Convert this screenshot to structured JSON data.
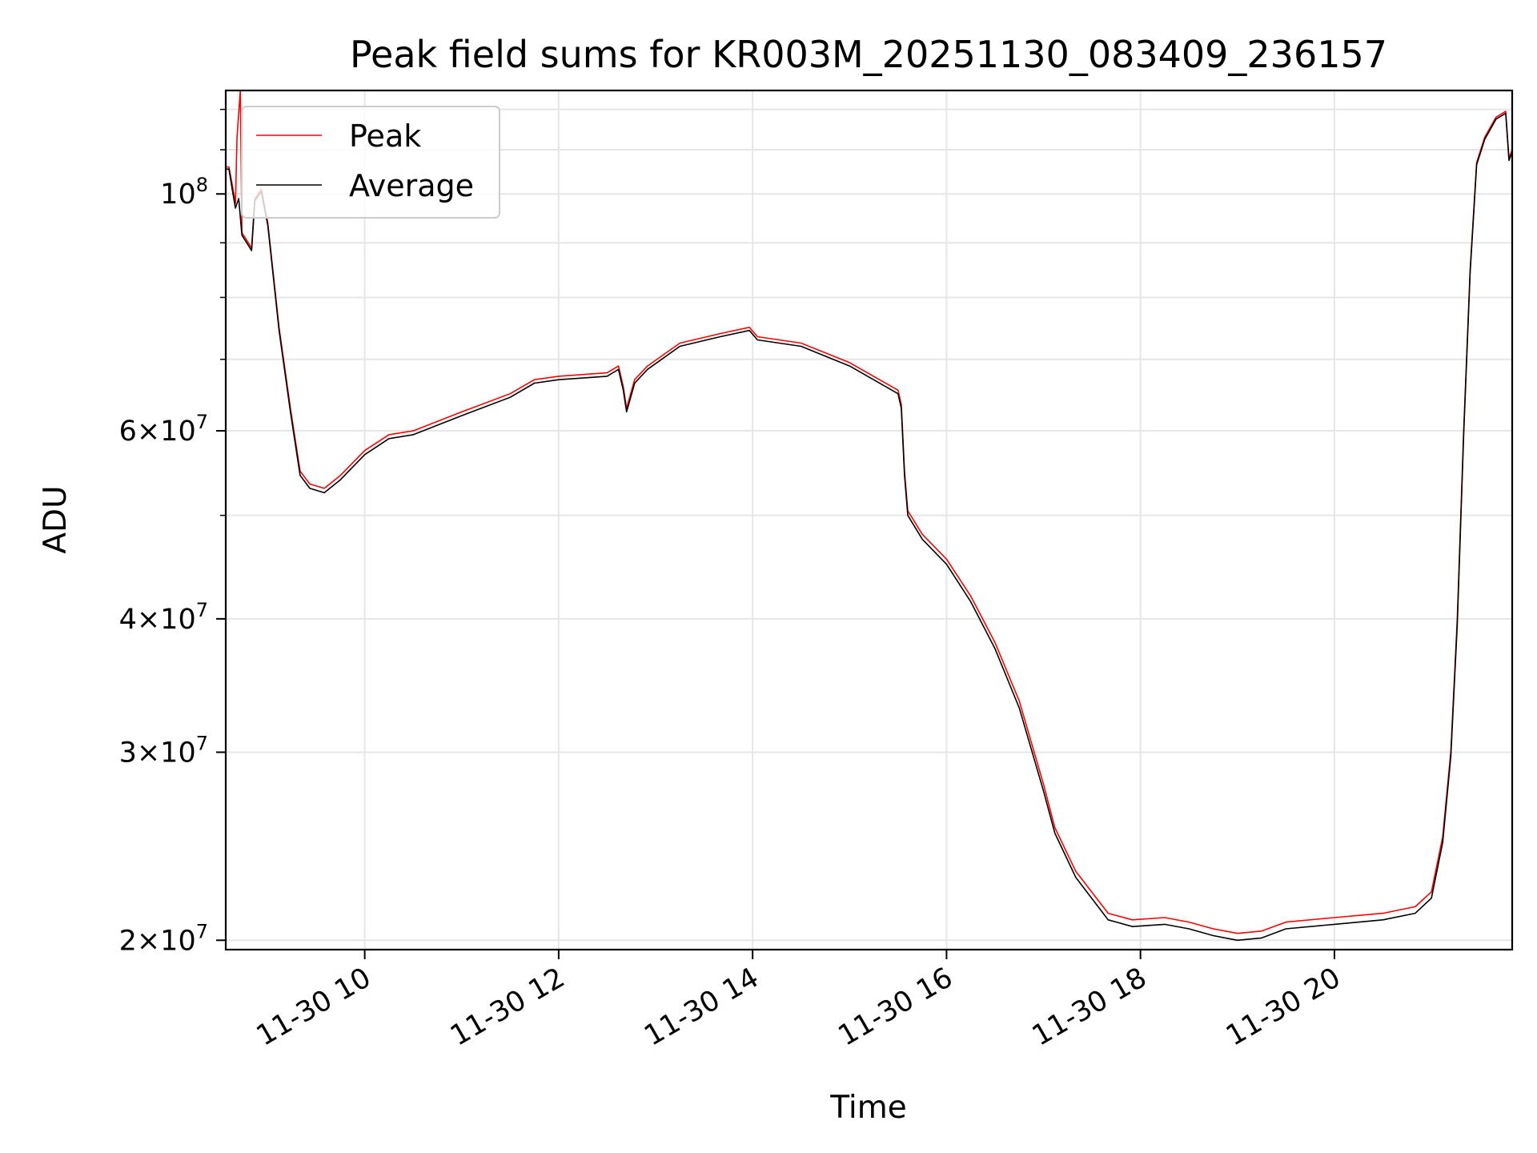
{
  "chart_data": {
    "type": "line",
    "title": "Peak field sums for KR003M_20251130_083409_236157",
    "xlabel": "Time",
    "ylabel": "ADU",
    "yscale": "log",
    "grid": true,
    "legend_position": "top-left",
    "xlim": [
      "2025-11-30 08:34",
      "2025-11-30 21:50"
    ],
    "ylim": [
      19600000,
      125000000
    ],
    "x_ticks": [
      {
        "time": "2025-11-30 10:00",
        "label": "11-30 10"
      },
      {
        "time": "2025-11-30 12:00",
        "label": "11-30 12"
      },
      {
        "time": "2025-11-30 14:00",
        "label": "11-30 14"
      },
      {
        "time": "2025-11-30 16:00",
        "label": "11-30 16"
      },
      {
        "time": "2025-11-30 18:00",
        "label": "11-30 18"
      },
      {
        "time": "2025-11-30 20:00",
        "label": "11-30 20"
      }
    ],
    "y_major_ticks": [
      {
        "value": 20000000,
        "mant": "2",
        "exp": "7"
      },
      {
        "value": 30000000,
        "mant": "3",
        "exp": "7"
      },
      {
        "value": 40000000,
        "mant": "4",
        "exp": "7"
      },
      {
        "value": 60000000,
        "mant": "6",
        "exp": "7"
      },
      {
        "value": 100000000,
        "mant": "",
        "exp": "8"
      }
    ],
    "y_minor_ticks": [
      50000000,
      70000000,
      80000000,
      90000000,
      110000000,
      120000000
    ],
    "series": [
      {
        "name": "Peak",
        "color": "#ff0000",
        "points": [
          [
            "2025-11-30 08:34",
            106000000
          ],
          [
            "2025-11-30 08:36",
            106000000
          ],
          [
            "2025-11-30 08:38",
            102000000
          ],
          [
            "2025-11-30 08:40",
            98000000
          ],
          [
            "2025-11-30 08:41",
            113000000
          ],
          [
            "2025-11-30 08:43",
            125000000
          ],
          [
            "2025-11-30 08:44",
            92000000
          ],
          [
            "2025-11-30 08:50",
            89000000
          ],
          [
            "2025-11-30 08:52",
            99000000
          ],
          [
            "2025-11-30 08:56",
            101000000
          ],
          [
            "2025-11-30 09:00",
            94000000
          ],
          [
            "2025-11-30 09:07",
            75000000
          ],
          [
            "2025-11-30 09:14",
            63000000
          ],
          [
            "2025-11-30 09:20",
            55000000
          ],
          [
            "2025-11-30 09:26",
            53500000
          ],
          [
            "2025-11-30 09:35",
            53000000
          ],
          [
            "2025-11-30 09:45",
            54500000
          ],
          [
            "2025-11-30 10:00",
            57500000
          ],
          [
            "2025-11-30 10:15",
            59500000
          ],
          [
            "2025-11-30 10:30",
            60000000
          ],
          [
            "2025-11-30 11:00",
            62500000
          ],
          [
            "2025-11-30 11:30",
            65000000
          ],
          [
            "2025-11-30 11:45",
            67000000
          ],
          [
            "2025-11-30 12:00",
            67500000
          ],
          [
            "2025-11-30 12:30",
            68000000
          ],
          [
            "2025-11-30 12:37",
            69000000
          ],
          [
            "2025-11-30 12:40",
            66000000
          ],
          [
            "2025-11-30 12:42",
            63000000
          ],
          [
            "2025-11-30 12:47",
            67000000
          ],
          [
            "2025-11-30 12:55",
            69000000
          ],
          [
            "2025-11-30 13:15",
            72500000
          ],
          [
            "2025-11-30 13:40",
            74000000
          ],
          [
            "2025-11-30 13:58",
            75000000
          ],
          [
            "2025-11-30 14:03",
            73500000
          ],
          [
            "2025-11-30 14:30",
            72500000
          ],
          [
            "2025-11-30 15:00",
            69500000
          ],
          [
            "2025-11-30 15:30",
            65500000
          ],
          [
            "2025-11-30 15:32",
            63500000
          ],
          [
            "2025-11-30 15:34",
            55000000
          ],
          [
            "2025-11-30 15:36",
            50500000
          ],
          [
            "2025-11-30 15:45",
            48000000
          ],
          [
            "2025-11-30 16:00",
            45500000
          ],
          [
            "2025-11-30 16:15",
            42000000
          ],
          [
            "2025-11-30 16:30",
            38000000
          ],
          [
            "2025-11-30 16:45",
            33500000
          ],
          [
            "2025-11-30 17:00",
            28000000
          ],
          [
            "2025-11-30 17:07",
            25500000
          ],
          [
            "2025-11-30 17:20",
            23200000
          ],
          [
            "2025-11-30 17:40",
            21200000
          ],
          [
            "2025-11-30 17:55",
            20900000
          ],
          [
            "2025-11-30 18:15",
            21000000
          ],
          [
            "2025-11-30 18:30",
            20800000
          ],
          [
            "2025-11-30 18:45",
            20500000
          ],
          [
            "2025-11-30 19:00",
            20300000
          ],
          [
            "2025-11-30 19:15",
            20400000
          ],
          [
            "2025-11-30 19:30",
            20800000
          ],
          [
            "2025-11-30 20:00",
            21000000
          ],
          [
            "2025-11-30 20:30",
            21200000
          ],
          [
            "2025-11-30 20:50",
            21500000
          ],
          [
            "2025-11-30 21:00",
            22200000
          ],
          [
            "2025-11-30 21:07",
            25000000
          ],
          [
            "2025-11-30 21:12",
            30000000
          ],
          [
            "2025-11-30 21:16",
            40000000
          ],
          [
            "2025-11-30 21:20",
            60000000
          ],
          [
            "2025-11-30 21:24",
            85000000
          ],
          [
            "2025-11-30 21:28",
            107000000
          ],
          [
            "2025-11-30 21:33",
            113000000
          ],
          [
            "2025-11-30 21:40",
            118000000
          ],
          [
            "2025-11-30 21:46",
            119500000
          ],
          [
            "2025-11-30 21:48",
            108000000
          ],
          [
            "2025-11-30 21:50",
            110000000
          ]
        ]
      },
      {
        "name": "Average",
        "color": "#000000",
        "points": [
          [
            "2025-11-30 08:34",
            105500000
          ],
          [
            "2025-11-30 08:36",
            105500000
          ],
          [
            "2025-11-30 08:38",
            101000000
          ],
          [
            "2025-11-30 08:40",
            97000000
          ],
          [
            "2025-11-30 08:42",
            99000000
          ],
          [
            "2025-11-30 08:44",
            91500000
          ],
          [
            "2025-11-30 08:50",
            88500000
          ],
          [
            "2025-11-30 08:52",
            98500000
          ],
          [
            "2025-11-30 08:56",
            100500000
          ],
          [
            "2025-11-30 09:00",
            93500000
          ],
          [
            "2025-11-30 09:07",
            74500000
          ],
          [
            "2025-11-30 09:14",
            62500000
          ],
          [
            "2025-11-30 09:20",
            54500000
          ],
          [
            "2025-11-30 09:26",
            53000000
          ],
          [
            "2025-11-30 09:35",
            52500000
          ],
          [
            "2025-11-30 09:45",
            54000000
          ],
          [
            "2025-11-30 10:00",
            57000000
          ],
          [
            "2025-11-30 10:15",
            59000000
          ],
          [
            "2025-11-30 10:30",
            59500000
          ],
          [
            "2025-11-30 11:00",
            62000000
          ],
          [
            "2025-11-30 11:30",
            64500000
          ],
          [
            "2025-11-30 11:45",
            66500000
          ],
          [
            "2025-11-30 12:00",
            67000000
          ],
          [
            "2025-11-30 12:30",
            67500000
          ],
          [
            "2025-11-30 12:37",
            68500000
          ],
          [
            "2025-11-30 12:40",
            65500000
          ],
          [
            "2025-11-30 12:42",
            62500000
          ],
          [
            "2025-11-30 12:47",
            66500000
          ],
          [
            "2025-11-30 12:55",
            68500000
          ],
          [
            "2025-11-30 13:15",
            72000000
          ],
          [
            "2025-11-30 13:40",
            73500000
          ],
          [
            "2025-11-30 13:58",
            74500000
          ],
          [
            "2025-11-30 14:03",
            73000000
          ],
          [
            "2025-11-30 14:30",
            72000000
          ],
          [
            "2025-11-30 15:00",
            69000000
          ],
          [
            "2025-11-30 15:30",
            65000000
          ],
          [
            "2025-11-30 15:32",
            63000000
          ],
          [
            "2025-11-30 15:34",
            54500000
          ],
          [
            "2025-11-30 15:36",
            50000000
          ],
          [
            "2025-11-30 15:45",
            47500000
          ],
          [
            "2025-11-30 16:00",
            45000000
          ],
          [
            "2025-11-30 16:15",
            41500000
          ],
          [
            "2025-11-30 16:30",
            37500000
          ],
          [
            "2025-11-30 16:45",
            33000000
          ],
          [
            "2025-11-30 17:00",
            27600000
          ],
          [
            "2025-11-30 17:07",
            25200000
          ],
          [
            "2025-11-30 17:20",
            22900000
          ],
          [
            "2025-11-30 17:40",
            20900000
          ],
          [
            "2025-11-30 17:55",
            20600000
          ],
          [
            "2025-11-30 18:15",
            20700000
          ],
          [
            "2025-11-30 18:30",
            20500000
          ],
          [
            "2025-11-30 18:45",
            20200000
          ],
          [
            "2025-11-30 19:00",
            20000000
          ],
          [
            "2025-11-30 19:15",
            20100000
          ],
          [
            "2025-11-30 19:30",
            20500000
          ],
          [
            "2025-11-30 20:00",
            20700000
          ],
          [
            "2025-11-30 20:30",
            20900000
          ],
          [
            "2025-11-30 20:50",
            21200000
          ],
          [
            "2025-11-30 21:00",
            21900000
          ],
          [
            "2025-11-30 21:07",
            24700000
          ],
          [
            "2025-11-30 21:12",
            29700000
          ],
          [
            "2025-11-30 21:16",
            39500000
          ],
          [
            "2025-11-30 21:20",
            59500000
          ],
          [
            "2025-11-30 21:24",
            84500000
          ],
          [
            "2025-11-30 21:28",
            106500000
          ],
          [
            "2025-11-30 21:33",
            112500000
          ],
          [
            "2025-11-30 21:40",
            117500000
          ],
          [
            "2025-11-30 21:46",
            119000000
          ],
          [
            "2025-11-30 21:48",
            107500000
          ],
          [
            "2025-11-30 21:50",
            109500000
          ]
        ]
      }
    ]
  }
}
